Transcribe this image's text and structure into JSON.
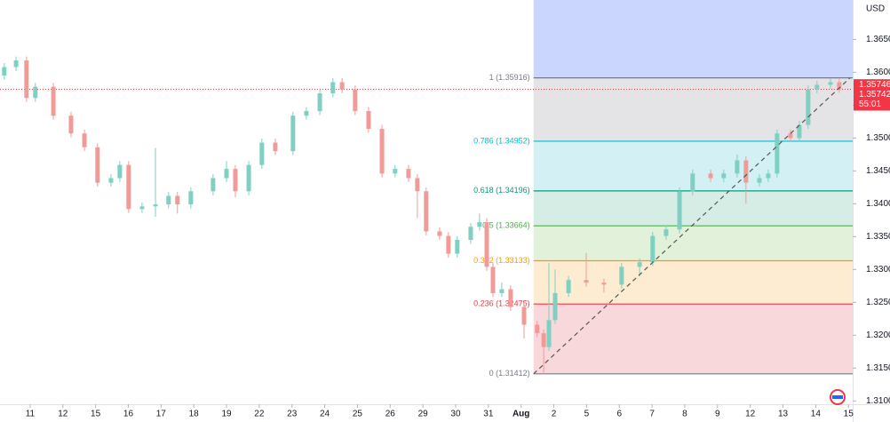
{
  "chart_data": {
    "type": "candlestick",
    "currency": "USD",
    "categories": [
      "11",
      "12",
      "15",
      "16",
      "17",
      "18",
      "19",
      "22",
      "23",
      "24",
      "25",
      "26",
      "29",
      "30",
      "31",
      "Aug",
      "2",
      "5",
      "6",
      "7",
      "8",
      "9",
      "12",
      "13",
      "14",
      "15"
    ],
    "xlim": [
      -0.92,
      25.13
    ],
    "ylim": [
      1.3095,
      1.371
    ],
    "yticks": [
      {
        "value": 1.31,
        "label": "1.31000"
      },
      {
        "value": 1.315,
        "label": "1.31500"
      },
      {
        "value": 1.32,
        "label": "1.32000"
      },
      {
        "value": 1.325,
        "label": "1.32500"
      },
      {
        "value": 1.33,
        "label": "1.33000"
      },
      {
        "value": 1.335,
        "label": "1.33500"
      },
      {
        "value": 1.34,
        "label": "1.34000"
      },
      {
        "value": 1.345,
        "label": "1.34500"
      },
      {
        "value": 1.35,
        "label": "1.35000"
      },
      {
        "value": 1.355,
        "label": "1.35500"
      },
      {
        "value": 1.36,
        "label": "1.36000"
      },
      {
        "value": 1.365,
        "label": "1.36500"
      }
    ],
    "up_color": "#7fcfc3",
    "down_color": "#f19b98",
    "candles": {
      "x": [
        -0.79,
        -0.43,
        -0.11,
        0.16,
        0.71,
        1.25,
        1.66,
        2.06,
        2.47,
        2.74,
        3.01,
        3.42,
        3.83,
        4.23,
        4.5,
        4.91,
        5.59,
        6.0,
        6.27,
        6.68,
        7.08,
        7.49,
        8.03,
        8.44,
        8.85,
        9.25,
        9.53,
        9.93,
        10.34,
        10.75,
        11.15,
        11.56,
        11.83,
        12.1,
        12.51,
        12.78,
        13.05,
        13.46,
        13.73,
        13.95,
        14.14,
        14.41,
        14.68,
        15.09,
        15.49,
        15.69,
        15.85,
        16.04,
        16.45,
        16.99,
        17.53,
        18.07,
        18.62,
        19.02,
        19.43,
        19.84,
        20.24,
        20.79,
        21.19,
        21.6,
        21.87,
        22.28,
        22.55,
        22.82,
        23.23,
        23.5,
        23.77,
        24.04,
        24.45,
        24.72
      ],
      "open": [
        1.3595,
        1.3608,
        1.3618,
        1.3561,
        1.3578,
        1.3534,
        1.3507,
        1.3486,
        1.3432,
        1.3439,
        1.3459,
        1.3392,
        1.3396,
        1.3399,
        1.3412,
        1.3399,
        1.3419,
        1.3439,
        1.3453,
        1.3419,
        1.3459,
        1.3493,
        1.348,
        1.3534,
        1.3541,
        1.3568,
        1.3585,
        1.3574,
        1.3541,
        1.3514,
        1.3446,
        1.3453,
        1.3439,
        1.3419,
        1.3358,
        1.3351,
        1.3324,
        1.3345,
        1.3365,
        1.3372,
        1.3304,
        1.3264,
        1.327,
        1.3243,
        1.3216,
        1.3203,
        1.3182,
        1.3223,
        1.3264,
        1.3284,
        1.328,
        1.3277,
        1.3304,
        1.3311,
        1.3351,
        1.3361,
        1.3419,
        1.3446,
        1.3439,
        1.3446,
        1.3466,
        1.3432,
        1.3439,
        1.3446,
        1.3507,
        1.35,
        1.352,
        1.3574,
        1.3581,
        1.3585
      ],
      "high": [
        1.3614,
        1.3624,
        1.3624,
        1.3584,
        1.3584,
        1.354,
        1.3513,
        1.3492,
        1.3445,
        1.3465,
        1.3465,
        1.3402,
        1.3485,
        1.3418,
        1.3418,
        1.3425,
        1.3445,
        1.3465,
        1.3459,
        1.3465,
        1.3499,
        1.3499,
        1.354,
        1.3547,
        1.3574,
        1.3591,
        1.3591,
        1.358,
        1.3547,
        1.352,
        1.3459,
        1.3459,
        1.3445,
        1.3425,
        1.3364,
        1.3357,
        1.3351,
        1.3371,
        1.3385,
        1.3378,
        1.331,
        1.328,
        1.3276,
        1.3249,
        1.3222,
        1.3209,
        1.331,
        1.33,
        1.329,
        1.3325,
        1.3286,
        1.331,
        1.3317,
        1.3357,
        1.3367,
        1.3425,
        1.3452,
        1.3452,
        1.3452,
        1.3475,
        1.3472,
        1.3445,
        1.3452,
        1.3513,
        1.3513,
        1.3526,
        1.358,
        1.3587,
        1.3591,
        1.3591
      ],
      "low": [
        1.3589,
        1.3602,
        1.3555,
        1.3555,
        1.3528,
        1.3501,
        1.348,
        1.3426,
        1.3426,
        1.3433,
        1.3386,
        1.3386,
        1.338,
        1.3393,
        1.3385,
        1.3393,
        1.3413,
        1.3433,
        1.341,
        1.3413,
        1.3453,
        1.3474,
        1.3474,
        1.3528,
        1.3535,
        1.3562,
        1.3568,
        1.3535,
        1.3508,
        1.344,
        1.344,
        1.3433,
        1.3378,
        1.3352,
        1.3345,
        1.3318,
        1.3318,
        1.3339,
        1.3359,
        1.3298,
        1.3258,
        1.3258,
        1.3237,
        1.3195,
        1.3197,
        1.3141,
        1.3176,
        1.3217,
        1.3258,
        1.3274,
        1.3265,
        1.3271,
        1.329,
        1.3305,
        1.3345,
        1.3355,
        1.3413,
        1.3433,
        1.3433,
        1.344,
        1.34,
        1.3426,
        1.3433,
        1.344,
        1.3494,
        1.3494,
        1.3514,
        1.3568,
        1.3575,
        1.3569
      ],
      "close": [
        1.3608,
        1.3618,
        1.3561,
        1.3578,
        1.3534,
        1.3507,
        1.3486,
        1.3432,
        1.3439,
        1.3459,
        1.3392,
        1.3396,
        1.3399,
        1.3412,
        1.3399,
        1.3419,
        1.3439,
        1.3453,
        1.3419,
        1.3459,
        1.3493,
        1.348,
        1.3534,
        1.3541,
        1.3568,
        1.3585,
        1.3574,
        1.3541,
        1.3514,
        1.3446,
        1.3453,
        1.3439,
        1.3419,
        1.3358,
        1.3351,
        1.3324,
        1.3345,
        1.3365,
        1.3372,
        1.3304,
        1.3264,
        1.327,
        1.3243,
        1.3216,
        1.3203,
        1.3182,
        1.3223,
        1.3264,
        1.3284,
        1.328,
        1.3277,
        1.3304,
        1.3311,
        1.3351,
        1.3361,
        1.3419,
        1.3446,
        1.3439,
        1.3446,
        1.3466,
        1.3432,
        1.3439,
        1.3446,
        1.3507,
        1.35,
        1.352,
        1.3574,
        1.3581,
        1.3585,
        1.3575
      ]
    },
    "fib": {
      "x_start": 15.38,
      "fill_above": "#cad6fd",
      "levels": [
        {
          "label": "1 (1.35916)",
          "price": 1.35916,
          "color": "#787b86",
          "fill": "#e4e4e6"
        },
        {
          "label": "0.786 (1.34952)",
          "price": 1.34952,
          "color": "#00bcd4",
          "fill": "#d3f1f4"
        },
        {
          "label": "0.618 (1.34196)",
          "price": 1.34196,
          "color": "#089981",
          "fill": "#d6ede6"
        },
        {
          "label": "0.5 (1.33664)",
          "price": 1.33664,
          "color": "#4caf50",
          "fill": "#e2f1da"
        },
        {
          "label": "0.382 (1.33133)",
          "price": 1.33133,
          "color": "#ff9800",
          "fill": "#fdebd2"
        },
        {
          "label": "0.236 (1.32475)",
          "price": 1.32475,
          "color": "#f23645",
          "fill": "#f9d8dc"
        },
        {
          "label": "0 (1.31412)",
          "price": 1.31412,
          "color": "#787b86"
        }
      ]
    },
    "trend_line": {
      "x": [
        15.38,
        25.05
      ],
      "y": [
        1.31412,
        1.35916
      ]
    },
    "price_tags": [
      {
        "label": "1.35746",
        "price": 1.35746,
        "color": "#f23645"
      },
      {
        "label": "1.35742",
        "price": 1.35742,
        "countdown": "55:01",
        "color": "#f23645"
      }
    ]
  }
}
